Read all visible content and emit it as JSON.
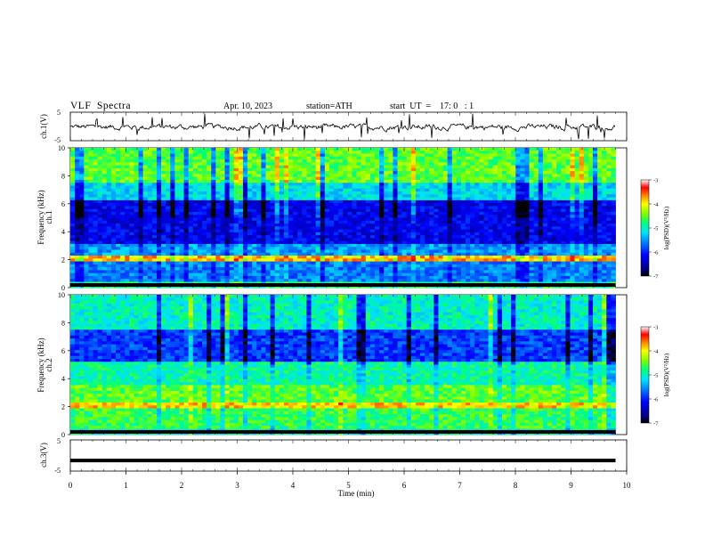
{
  "header": {
    "title": "VLF  Spectra",
    "date": "Apr. 10, 2023",
    "station": "station=ATH",
    "start": "start  UT  =    17: 0   : 1"
  },
  "chart_data": [
    {
      "type": "line",
      "panel": "ch1-waveform",
      "ylabel": "ch.1(V)",
      "ylim": [
        -5,
        5
      ],
      "yticks": [
        "5",
        "-5"
      ],
      "x_range_min": [
        0,
        9.8
      ],
      "description_values": "noisy waveform fluctuating around approximately -0.2 V with occasional spikes to about +4 V and -4 V"
    },
    {
      "type": "heatmap",
      "panel": "ch1-spectrogram",
      "ylabel": "ch.1\nFrequency (kHz)",
      "ylim": [
        0,
        10
      ],
      "yticks": [
        "0",
        "2",
        "4",
        "6",
        "8",
        "10"
      ],
      "colorbar": {
        "label": "log(PSD)(V²/Hz)",
        "ticks": [
          "-3",
          "-4",
          "-5",
          "-6",
          "-7"
        ],
        "range": [
          -7,
          -3
        ]
      }
    },
    {
      "type": "heatmap",
      "panel": "ch2-spectrogram",
      "ylabel": "ch.2\nFrequency (kHz)",
      "ylim": [
        0,
        10
      ],
      "yticks": [
        "0",
        "2",
        "4",
        "6",
        "8",
        "10"
      ],
      "colorbar": {
        "label": "log(PSD)(V²/Hz)",
        "ticks": [
          "-3",
          "-4",
          "-5",
          "-6",
          "-7"
        ],
        "range": [
          -7,
          -3
        ]
      }
    },
    {
      "type": "line",
      "panel": "ch3-waveform",
      "ylabel": "ch.3(V)",
      "ylim": [
        -5,
        5
      ],
      "yticks": [
        "5",
        "-5"
      ],
      "values_constant": -1.6
    }
  ],
  "xaxis": {
    "label": "Time  (min)",
    "ticks": [
      "0",
      "1",
      "2",
      "3",
      "4",
      "5",
      "6",
      "7",
      "8",
      "9",
      "10"
    ],
    "xlim": [
      0,
      10
    ],
    "data_end": 9.8
  }
}
